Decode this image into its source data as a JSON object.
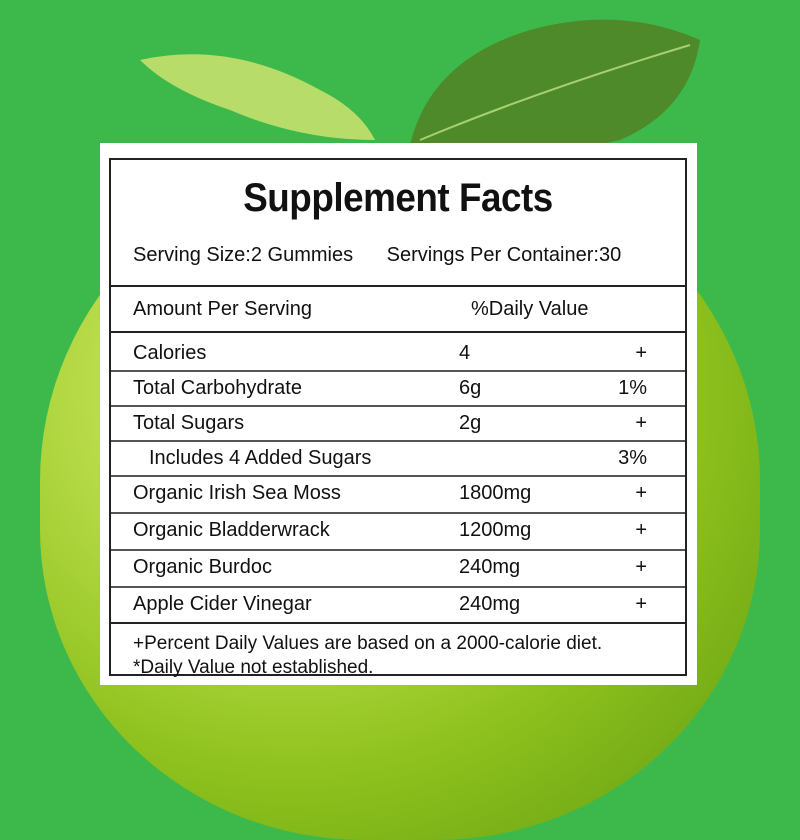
{
  "colors": {
    "background": "#3db94b",
    "apple": "#9cc92a",
    "leaf": "#4f8a2a",
    "text": "#111111"
  },
  "label": {
    "title": "Supplement Facts",
    "serving_size": "Serving Size:2 Gummies",
    "servings_per_container": "Servings Per Container:30",
    "amount_header": "Amount Per Serving",
    "dv_header": "%Daily Value",
    "rows": [
      {
        "name": "Calories",
        "amount": "4",
        "dv": "+"
      },
      {
        "name": "Total Carbohydrate",
        "amount": "6g",
        "dv": "1%"
      },
      {
        "name": "Total Sugars",
        "amount": "2g",
        "dv": "+"
      },
      {
        "name": "Includes 4 Added Sugars",
        "amount": "",
        "dv": "3%"
      },
      {
        "name": "Organic Irish Sea Moss",
        "amount": "1800mg",
        "dv": "+"
      },
      {
        "name": "Organic Bladderwrack",
        "amount": "1200mg",
        "dv": "+"
      },
      {
        "name": "Organic Burdoc",
        "amount": "240mg",
        "dv": "+"
      },
      {
        "name": "Apple Cider Vinegar",
        "amount": "240mg",
        "dv": "+"
      }
    ],
    "footnote_1": "+Percent Daily Values are based on a 2000-calorie diet.",
    "footnote_2": "*Daily Value not established."
  }
}
